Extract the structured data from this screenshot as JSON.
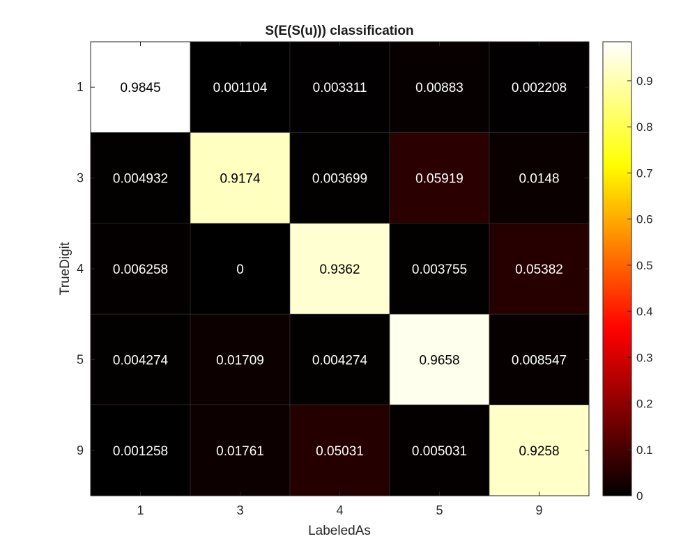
{
  "chart_data": {
    "type": "heatmap",
    "title": "S(E(S(u))) classification",
    "xlabel": "LabeledAs",
    "ylabel": "TrueDigit",
    "x_categories": [
      "1",
      "3",
      "4",
      "5",
      "9"
    ],
    "y_categories": [
      "1",
      "3",
      "4",
      "5",
      "9"
    ],
    "values": [
      [
        0.9845,
        0.001104,
        0.003311,
        0.00883,
        0.002208
      ],
      [
        0.004932,
        0.9174,
        0.003699,
        0.05919,
        0.0148
      ],
      [
        0.006258,
        0,
        0.9362,
        0.003755,
        0.05382
      ],
      [
        0.004274,
        0.01709,
        0.004274,
        0.9658,
        0.008547
      ],
      [
        0.001258,
        0.01761,
        0.05031,
        0.005031,
        0.9258
      ]
    ],
    "cell_labels": [
      [
        "0.9845",
        "0.001104",
        "0.003311",
        "0.00883",
        "0.002208"
      ],
      [
        "0.004932",
        "0.9174",
        "0.003699",
        "0.05919",
        "0.0148"
      ],
      [
        "0.006258",
        "0",
        "0.9362",
        "0.003755",
        "0.05382"
      ],
      [
        "0.004274",
        "0.01709",
        "0.004274",
        "0.9658",
        "0.008547"
      ],
      [
        "0.001258",
        "0.01761",
        "0.05031",
        "0.005031",
        "0.9258"
      ]
    ],
    "colormap": "hot",
    "clim": [
      0,
      0.9845
    ],
    "colorbar": {
      "ticks": [
        0,
        0.1,
        0.2,
        0.3,
        0.4,
        0.5,
        0.6,
        0.7,
        0.8,
        0.9
      ],
      "tick_labels": [
        "0",
        "0.1",
        "0.2",
        "0.3",
        "0.4",
        "0.5",
        "0.6",
        "0.7",
        "0.8",
        "0.9"
      ],
      "placement": "right"
    },
    "grid": true
  }
}
